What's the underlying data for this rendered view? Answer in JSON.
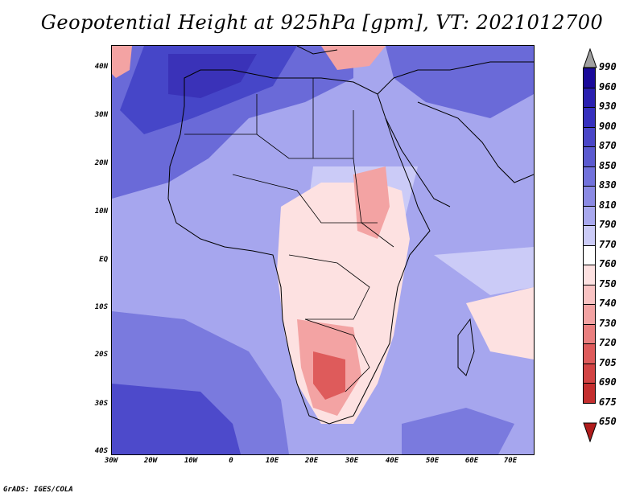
{
  "title": "Geopotential Height at 925hPa [gpm], VT: 2021012700",
  "map": {
    "lat_labels": [
      "40N",
      "30N",
      "20N",
      "10N",
      "EQ",
      "10S",
      "20S",
      "30S",
      "40S"
    ],
    "lon_labels": [
      "30W",
      "20W",
      "10W",
      "0",
      "10E",
      "20E",
      "30E",
      "40E",
      "50E",
      "60E",
      "70E"
    ]
  },
  "colorbar": {
    "levels": [
      "990",
      "960",
      "930",
      "900",
      "870",
      "850",
      "830",
      "810",
      "790",
      "770",
      "760",
      "750",
      "740",
      "730",
      "720",
      "705",
      "690",
      "675",
      "650"
    ],
    "colors": [
      "#a0a0a0",
      "#1a0a9a",
      "#2a20b0",
      "#3630be",
      "#4a46c8",
      "#5b5ad0",
      "#7272dc",
      "#8b8ae4",
      "#a8a8ee",
      "#cbcbf7",
      "#ffffff",
      "#fde1e1",
      "#f9c3c3",
      "#f3a3a3",
      "#ea7f7f",
      "#de5b5b",
      "#d24444",
      "#c42f2f",
      "#b01c1c"
    ]
  },
  "footer": "GrADS: IGES/COLA"
}
